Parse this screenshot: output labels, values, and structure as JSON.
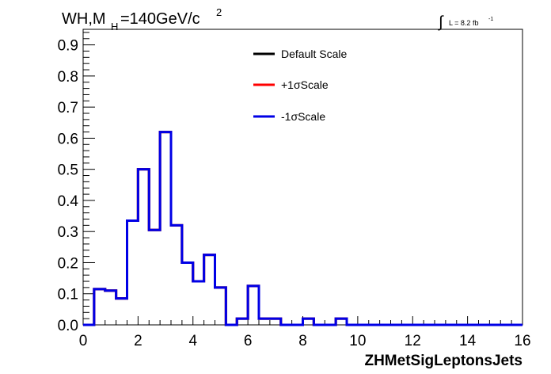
{
  "chart_data": {
    "type": "line",
    "subtype": "histogram-step",
    "title_main": "WH,M",
    "title_sub": "H",
    "title_rest": "=140GeV/c",
    "title_sup": "2",
    "lumi_text": "L = 8.2 fb",
    "lumi_sup": "-1",
    "xlabel": "ZHMetSigLeptonsJets",
    "ylabel": "",
    "xlim": [
      0,
      16
    ],
    "ylim": [
      0,
      0.95
    ],
    "xticks": [
      0,
      2,
      4,
      6,
      8,
      10,
      12,
      14,
      16
    ],
    "yticks": [
      0.0,
      0.1,
      0.2,
      0.3,
      0.4,
      0.5,
      0.6,
      0.7,
      0.8,
      0.9
    ],
    "ytick_labels": [
      "0.0",
      "0.1",
      "0.2",
      "0.3",
      "0.4",
      "0.5",
      "0.6",
      "0.7",
      "0.8",
      "0.9"
    ],
    "grid": false,
    "legend_position": "top-center",
    "bin_edges": [
      0,
      0.4,
      0.8,
      1.2,
      1.6,
      2.0,
      2.4,
      2.8,
      3.2,
      3.6,
      4.0,
      4.4,
      4.8,
      5.2,
      5.6,
      6.0,
      6.4,
      6.8,
      7.2,
      7.6,
      8.0,
      8.4,
      8.8,
      9.2,
      9.6,
      10.0,
      10.4,
      10.8,
      11.2,
      11.6,
      12.0,
      12.4,
      12.8,
      13.2,
      13.6,
      14.0,
      14.4,
      14.8,
      15.2,
      15.6,
      16.0
    ],
    "series": [
      {
        "name": "Default Scale",
        "color": "#000000",
        "values": [
          0,
          0.115,
          0.11,
          0.085,
          0.335,
          0.5,
          0.305,
          0.62,
          0.32,
          0.2,
          0.14,
          0.225,
          0.12,
          0,
          0.02,
          0.125,
          0.02,
          0.02,
          0,
          0,
          0.02,
          0,
          0,
          0.02,
          0,
          0,
          0,
          0,
          0,
          0,
          0,
          0,
          0,
          0,
          0,
          0,
          0,
          0,
          0,
          0
        ]
      },
      {
        "name": "+1σScale",
        "color": "#ff0000",
        "values": [
          0,
          0.115,
          0.11,
          0.085,
          0.335,
          0.5,
          0.305,
          0.62,
          0.32,
          0.2,
          0.14,
          0.225,
          0.12,
          0,
          0.02,
          0.125,
          0.02,
          0.02,
          0,
          0,
          0.02,
          0,
          0,
          0.02,
          0,
          0,
          0,
          0,
          0,
          0,
          0,
          0,
          0,
          0,
          0,
          0,
          0,
          0,
          0,
          0
        ]
      },
      {
        "name": "-1σScale",
        "color": "#0000e6",
        "values": [
          0,
          0.115,
          0.11,
          0.085,
          0.335,
          0.5,
          0.305,
          0.62,
          0.32,
          0.2,
          0.14,
          0.225,
          0.12,
          0,
          0.02,
          0.125,
          0.02,
          0.02,
          0,
          0,
          0.02,
          0,
          0,
          0.02,
          0,
          0,
          0,
          0,
          0,
          0,
          0,
          0,
          0,
          0,
          0,
          0,
          0,
          0,
          0,
          0
        ]
      }
    ]
  }
}
